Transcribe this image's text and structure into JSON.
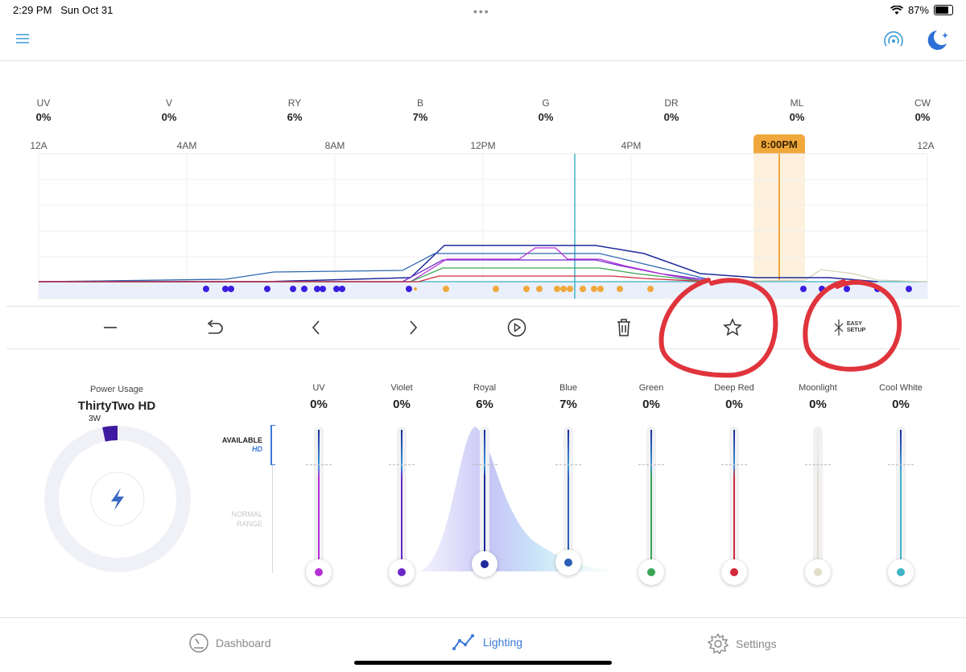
{
  "status": {
    "time": "2:29 PM",
    "date": "Sun Oct 31",
    "battery": "87%",
    "battery_level": 0.87
  },
  "channels_top": [
    {
      "label": "UV",
      "value": "0%"
    },
    {
      "label": "V",
      "value": "0%"
    },
    {
      "label": "RY",
      "value": "6%"
    },
    {
      "label": "B",
      "value": "7%"
    },
    {
      "label": "G",
      "value": "0%"
    },
    {
      "label": "DR",
      "value": "0%"
    },
    {
      "label": "ML",
      "value": "0%"
    },
    {
      "label": "CW",
      "value": "0%"
    }
  ],
  "timeline": {
    "ticks": [
      "12A",
      "4AM",
      "8AM",
      "12PM",
      "4PM",
      "12A"
    ],
    "selected_time": "8:00PM"
  },
  "toolbar": {
    "easy_setup_line1": "EASY",
    "easy_setup_line2": "SETUP"
  },
  "power": {
    "title": "Power Usage",
    "device": "ThirtyTwo HD",
    "watts": "3W"
  },
  "range_labels": {
    "available": "AVAILABLE",
    "hd": "HD",
    "normal_line1": "NORMAL",
    "normal_line2": "RANGE"
  },
  "sliders": [
    {
      "name": "UV",
      "value": "0%",
      "color": "#b530d6"
    },
    {
      "name": "Violet",
      "value": "0%",
      "color": "#6a28c9"
    },
    {
      "name": "Royal",
      "value": "6%",
      "color": "#1e2a9a"
    },
    {
      "name": "Blue",
      "value": "7%",
      "color": "#2c5fb8"
    },
    {
      "name": "Green",
      "value": "0%",
      "color": "#3aa655"
    },
    {
      "name": "Deep Red",
      "value": "0%",
      "color": "#d1283a"
    },
    {
      "name": "Moonlight",
      "value": "0%",
      "color": "#e2ddc8"
    },
    {
      "name": "Cool White",
      "value": "0%",
      "color": "#3fb4c8"
    }
  ],
  "tabs": {
    "dashboard": "Dashboard",
    "lighting": "Lighting",
    "settings": "Settings"
  },
  "colors": {
    "accent": "#3a79d6",
    "highlight": "#f0a83c",
    "annotation": "#e0343c"
  }
}
